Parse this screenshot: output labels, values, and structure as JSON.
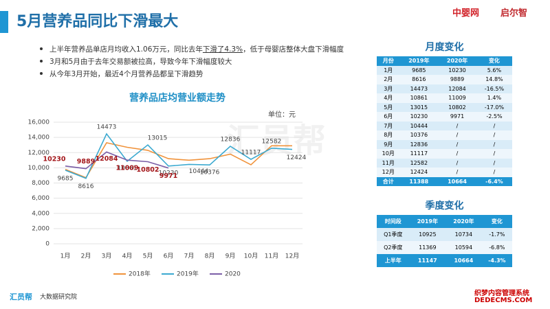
{
  "header": {
    "title": "5月营养品同比下滑最大",
    "logos": [
      "中婴网",
      "启尔智"
    ]
  },
  "bullets": [
    [
      "上半年营养品单店月均收入1.06万元，同比去年",
      "下滑了4.3%",
      "，低于母婴店整体大盘下滑幅度"
    ],
    [
      "3月和5月由于去年交易额被拉高，导致今年下滑幅度较大"
    ],
    [
      "从今年3月开始，最近4个月营养品都呈下滑趋势"
    ]
  ],
  "chart_data": {
    "type": "line",
    "title": "营养品店均营业额走势",
    "unit_label": "单位：元",
    "categories": [
      "1月",
      "2月",
      "3月",
      "4月",
      "5月",
      "6月",
      "7月",
      "8月",
      "9月",
      "10月",
      "11月",
      "12月"
    ],
    "series": [
      {
        "name": "2018年",
        "color": "#f0923a",
        "values": [
          9800,
          8700,
          13300,
          12700,
          12300,
          11200,
          11000,
          11200,
          11800,
          10400,
          12900,
          12900
        ]
      },
      {
        "name": "2019年",
        "color": "#3aa9d0",
        "values": [
          9685,
          8616,
          14473,
          10861,
          13015,
          10230,
          10444,
          10376,
          12836,
          11117,
          12582,
          12424
        ]
      },
      {
        "name": "2020",
        "color": "#7b5ea7",
        "values": [
          10230,
          9889,
          12084,
          11009,
          10802,
          9971,
          null,
          null,
          null,
          null,
          null,
          null
        ]
      }
    ],
    "ylim": [
      0,
      16000
    ],
    "yticks": [
      0,
      {
        "value": 2000,
        "label": "2,000"
      },
      {
        "value": 4000,
        "label": "4,000"
      },
      {
        "value": 6000,
        "label": "6,000"
      },
      {
        "value": 8000,
        "label": "8,000"
      },
      {
        "value": 10000,
        "label": "10,000"
      },
      {
        "value": 12000,
        "label": "12,000"
      },
      {
        "value": 14000,
        "label": "14,000"
      },
      {
        "value": 16000,
        "label": "16,000"
      }
    ],
    "grid": true
  },
  "monthly_table": {
    "title": "月度变化",
    "columns": [
      "月份",
      "2019年",
      "2020年",
      "变化"
    ],
    "rows": [
      [
        "1月",
        "9685",
        "10230",
        "5.6%"
      ],
      [
        "2月",
        "8616",
        "9889",
        "14.8%"
      ],
      [
        "3月",
        "14473",
        "12084",
        "-16.5%"
      ],
      [
        "4月",
        "10861",
        "11009",
        "1.4%"
      ],
      [
        "5月",
        "13015",
        "10802",
        "-17.0%"
      ],
      [
        "6月",
        "10230",
        "9971",
        "-2.5%"
      ],
      [
        "7月",
        "10444",
        "/",
        "/"
      ],
      [
        "8月",
        "10376",
        "/",
        "/"
      ],
      [
        "9月",
        "12836",
        "/",
        "/"
      ],
      [
        "10月",
        "11117",
        "/",
        "/"
      ],
      [
        "11月",
        "12582",
        "/",
        "/"
      ],
      [
        "12月",
        "12424",
        "/",
        "/"
      ],
      [
        "合计",
        "11388",
        "10664",
        "-6.4%"
      ]
    ]
  },
  "quarterly_table": {
    "title": "季度变化",
    "columns": [
      "时间段",
      "2019年",
      "2020年",
      "变化"
    ],
    "rows": [
      [
        "Q1季度",
        "10925",
        "10734",
        "-1.7%"
      ],
      [
        "Q2季度",
        "11369",
        "10594",
        "-6.8%"
      ],
      [
        "上半年",
        "11147",
        "10664",
        "-4.3%"
      ]
    ]
  },
  "footer": {
    "brand": "汇员帮",
    "org": "大数据研究院"
  },
  "watermarks": [
    "汇员帮",
    "织梦内容管理系统",
    "DEDECMS.COM"
  ]
}
